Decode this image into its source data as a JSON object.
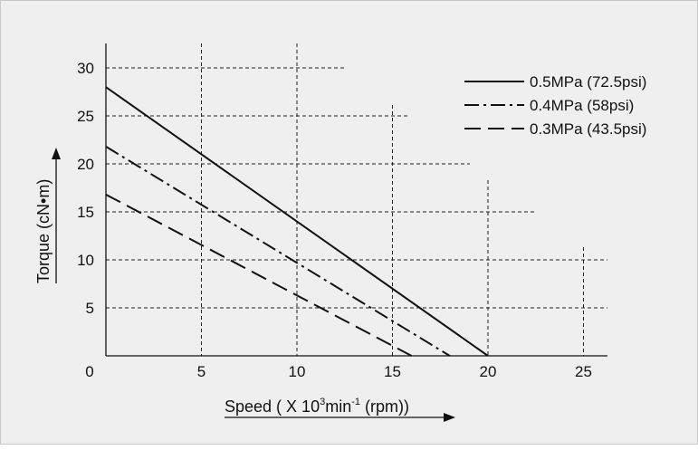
{
  "chart_data": {
    "type": "line",
    "title": "",
    "xlabel": "Speed ( X 10",
    "xlabel_sup": "3",
    "xlabel_mid": "min",
    "xlabel_sup2": "-1",
    "xlabel_end": " (rpm))",
    "ylabel": "Torque (cN•m)",
    "xlim": [
      0,
      26
    ],
    "ylim": [
      0,
      32
    ],
    "x_ticks": [
      "0",
      "5",
      "10",
      "15",
      "20",
      "25"
    ],
    "y_ticks": [
      "5",
      "10",
      "15",
      "20",
      "25",
      "30"
    ],
    "grid": true,
    "legend_position": "top-right",
    "series": [
      {
        "name": "0.5MPa (72.5psi)",
        "style": "solid",
        "points": [
          [
            0,
            28
          ],
          [
            20,
            0
          ]
        ]
      },
      {
        "name": "0.4MPa (58psi)",
        "style": "dash-dot",
        "points": [
          [
            0,
            21.8
          ],
          [
            18,
            0
          ]
        ]
      },
      {
        "name": "0.3MPa (43.5psi)",
        "style": "dashed",
        "points": [
          [
            0,
            16.8
          ],
          [
            16,
            0
          ]
        ]
      }
    ],
    "colors": {
      "background": "#efefef",
      "line": "#111111",
      "grid": "#222222"
    }
  }
}
